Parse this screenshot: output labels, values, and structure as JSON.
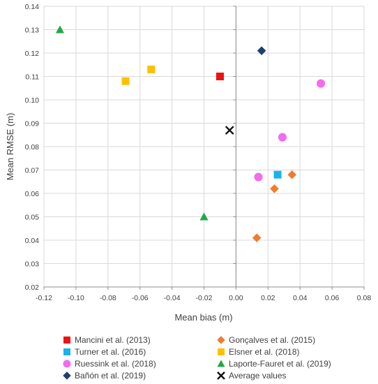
{
  "chart_data": {
    "type": "scatter",
    "title": "",
    "xlabel": "Mean bias (m)",
    "ylabel": "Mean RMSE (m)",
    "xlim": [
      -0.12,
      0.08
    ],
    "ylim": [
      0.02,
      0.14
    ],
    "x_ticks": [
      -0.12,
      -0.1,
      -0.08,
      -0.06,
      -0.04,
      -0.02,
      0.0,
      0.02,
      0.04,
      0.06,
      0.08
    ],
    "x_tick_labels": [
      "-0.12",
      "-0.10",
      "-0.08",
      "-0.06",
      "-0.04",
      "-0.02",
      "0.00",
      "0.02",
      "0.04",
      "0.06",
      "0.08"
    ],
    "y_ticks": [
      0.02,
      0.03,
      0.04,
      0.05,
      0.06,
      0.07,
      0.08,
      0.09,
      0.1,
      0.11,
      0.12,
      0.13,
      0.14
    ],
    "y_tick_labels": [
      "0.02",
      "0.03",
      "0.04",
      "0.05",
      "0.06",
      "0.07",
      "0.08",
      "0.09",
      "0.10",
      "0.11",
      "0.12",
      "0.13",
      "0.14"
    ],
    "grid": true,
    "legend_position": "bottom",
    "series": [
      {
        "name": "Mancini et al. (2013)",
        "marker": "square",
        "color": "#ee1111",
        "points": [
          [
            -0.01,
            0.11
          ]
        ]
      },
      {
        "name": "Gonçalves et al. (2015)",
        "marker": "diamond",
        "color": "#ed7d31",
        "points": [
          [
            0.013,
            0.041
          ],
          [
            0.024,
            0.062
          ],
          [
            0.035,
            0.068
          ]
        ]
      },
      {
        "name": "Turner et al. (2016)",
        "marker": "square",
        "color": "#1ab2ec",
        "points": [
          [
            0.026,
            0.068
          ]
        ]
      },
      {
        "name": "Elsner et al. (2018)",
        "marker": "square",
        "color": "#ffc000",
        "points": [
          [
            -0.069,
            0.108
          ],
          [
            -0.053,
            0.113
          ]
        ]
      },
      {
        "name": "Ruessink et al. (2018)",
        "marker": "circle",
        "color": "#f26cf0",
        "points": [
          [
            0.014,
            0.067
          ],
          [
            0.029,
            0.084
          ],
          [
            0.053,
            0.107
          ]
        ]
      },
      {
        "name": "Laporte-Fauret et al. (2019)",
        "marker": "triangle",
        "color": "#22a845",
        "points": [
          [
            -0.11,
            0.13
          ],
          [
            -0.02,
            0.05
          ]
        ]
      },
      {
        "name": "Bañón et al. (2019)",
        "marker": "diamond",
        "color": "#1f3f6e",
        "points": [
          [
            0.016,
            0.121
          ]
        ]
      },
      {
        "name": "Average values",
        "marker": "x",
        "color": "#111111",
        "points": [
          [
            -0.004,
            0.087
          ]
        ]
      }
    ]
  }
}
